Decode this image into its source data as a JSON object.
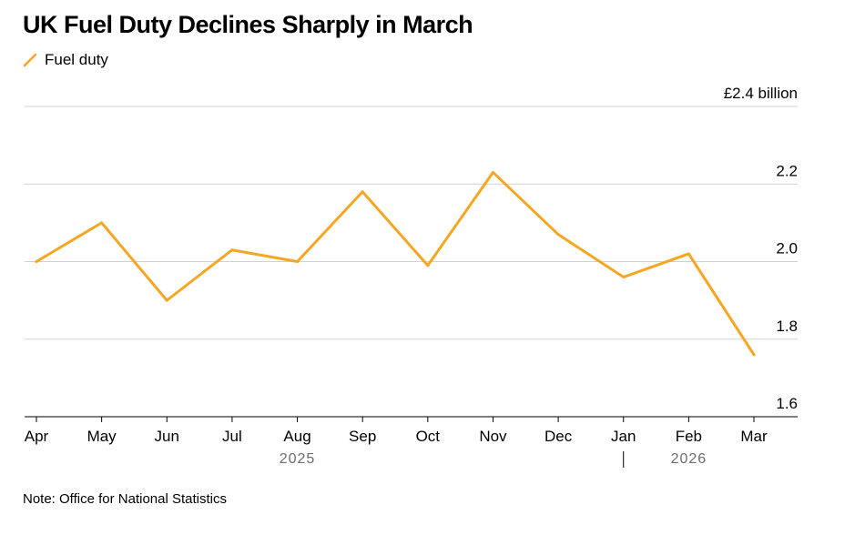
{
  "chart_data": {
    "type": "line",
    "title": "UK Fuel Duty Declines Sharply in March",
    "legend": {
      "placement": "top-left",
      "entries": [
        "Fuel duty"
      ]
    },
    "categories": [
      "Apr",
      "May",
      "Jun",
      "Jul",
      "Aug",
      "Sep",
      "Oct",
      "Nov",
      "Dec",
      "Jan",
      "Feb",
      "Mar"
    ],
    "year_labels": [
      {
        "label": "2025",
        "from_index": 0,
        "to_index": 8
      },
      {
        "label": "2026",
        "from_index": 9,
        "to_index": 11
      }
    ],
    "series": [
      {
        "name": "Fuel duty",
        "color": "#f5a623",
        "values": [
          2.0,
          2.1,
          1.9,
          2.03,
          2.0,
          2.18,
          1.99,
          2.23,
          2.07,
          1.96,
          2.02,
          1.76
        ]
      }
    ],
    "ylim": [
      1.6,
      2.4
    ],
    "yticks": [
      {
        "value": 2.4,
        "label": "£2.4 billion"
      },
      {
        "value": 2.2,
        "label": "2.2"
      },
      {
        "value": 2.0,
        "label": "2.0"
      },
      {
        "value": 1.8,
        "label": "1.8"
      },
      {
        "value": 1.6,
        "label": "1.6"
      }
    ],
    "grid": true,
    "xlabel": "",
    "ylabel": ""
  },
  "note": "Note: Office for National Statistics"
}
